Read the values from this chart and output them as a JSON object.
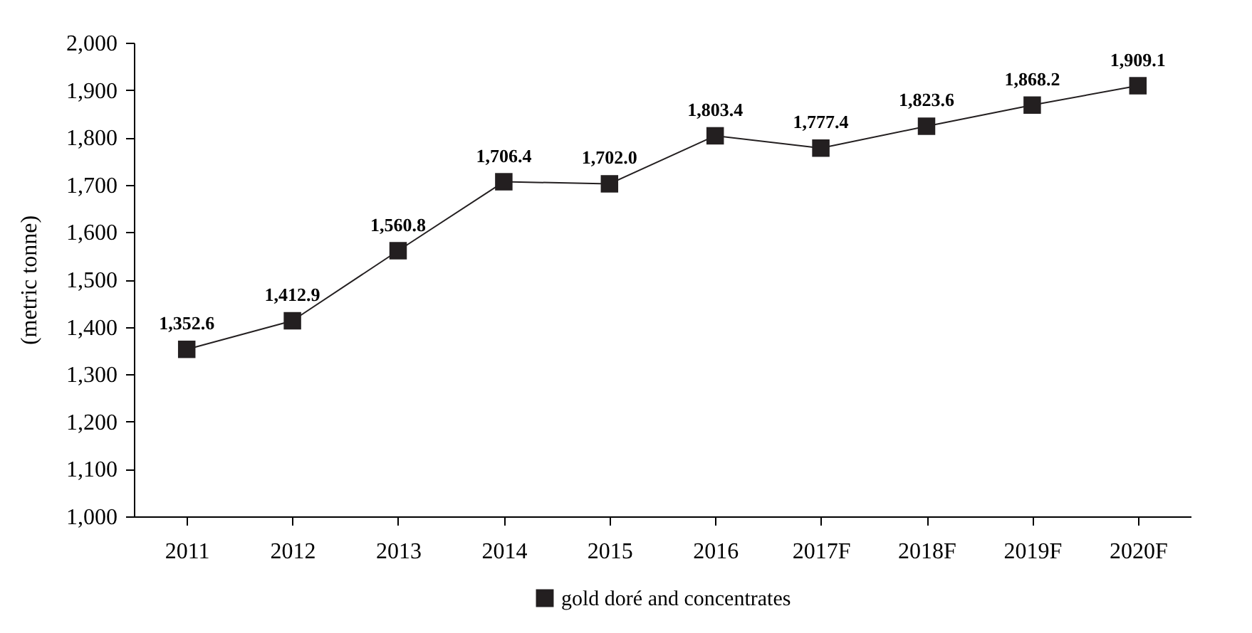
{
  "chart_data": {
    "type": "line",
    "ylabel": "(metric tonne)",
    "categories": [
      "2011",
      "2012",
      "2013",
      "2014",
      "2015",
      "2016",
      "2017F",
      "2018F",
      "2019F",
      "2020F"
    ],
    "series": [
      {
        "name": "gold doré and concentrates",
        "color": "#231f20",
        "values": [
          1352.6,
          1412.9,
          1560.8,
          1706.4,
          1702.0,
          1803.4,
          1777.4,
          1823.6,
          1868.2,
          1909.1
        ],
        "value_labels": [
          "1,352.6",
          "1,412.9",
          "1,560.8",
          "1,706.4",
          "1,702.0",
          "1,803.4",
          "1,777.4",
          "1,823.6",
          "1,868.2",
          "1,909.1"
        ]
      }
    ],
    "ylim": [
      1000,
      2000
    ],
    "yticks": [
      {
        "value": 1000,
        "label": "1,000"
      },
      {
        "value": 1100,
        "label": "1,100"
      },
      {
        "value": 1200,
        "label": "1,200"
      },
      {
        "value": 1300,
        "label": "1,300"
      },
      {
        "value": 1400,
        "label": "1,400"
      },
      {
        "value": 1500,
        "label": "1,500"
      },
      {
        "value": 1600,
        "label": "1,600"
      },
      {
        "value": 1700,
        "label": "1,700"
      },
      {
        "value": 1800,
        "label": "1,800"
      },
      {
        "value": 1900,
        "label": "1,900"
      },
      {
        "value": 2000,
        "label": "2,000"
      }
    ],
    "data_labels": true,
    "legend": "bottom",
    "marker": "square",
    "line_style": "solid",
    "grid": false
  }
}
